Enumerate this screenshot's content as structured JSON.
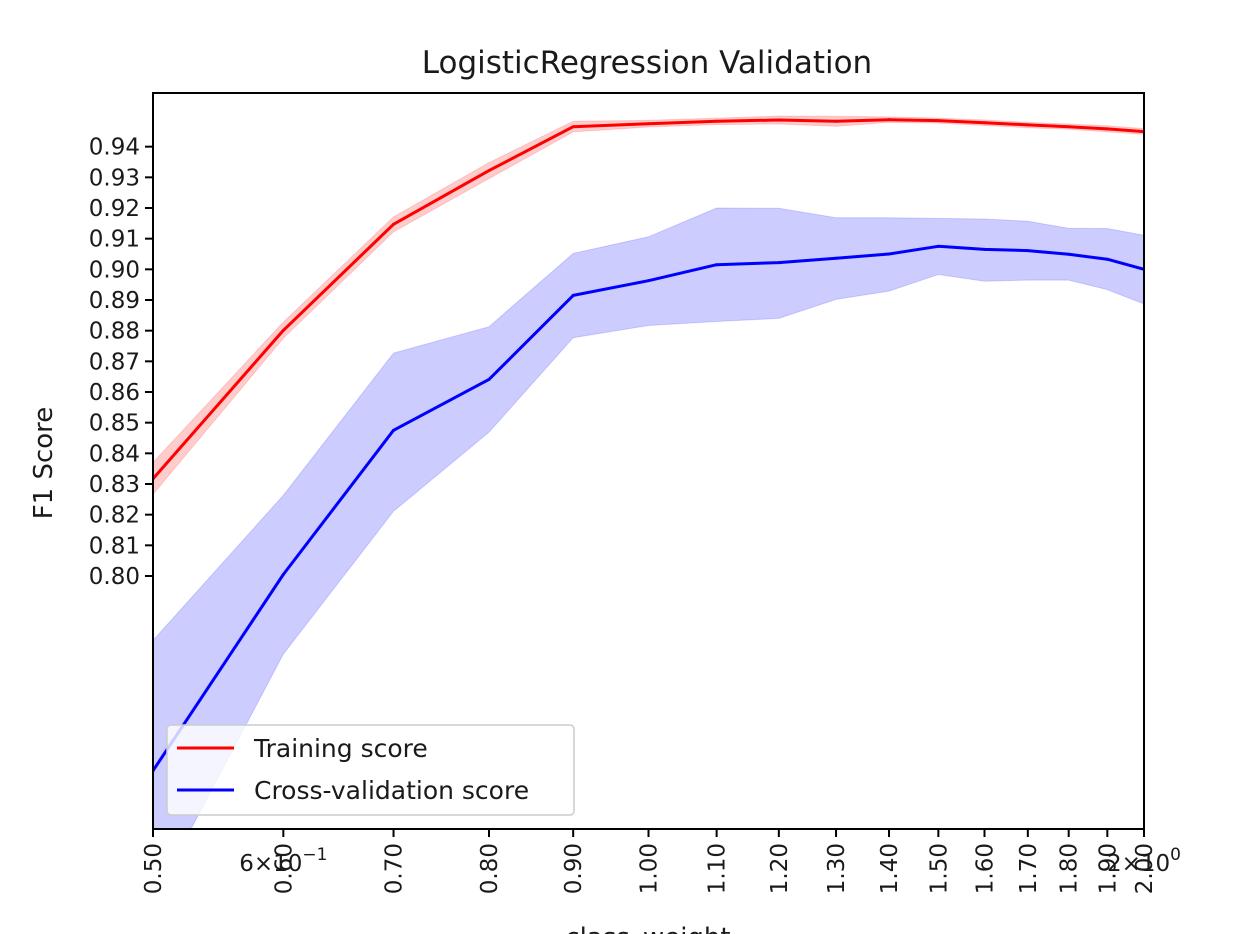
{
  "chart_data": {
    "type": "line",
    "title": "LogisticRegression Validation",
    "xlabel": "class_weight",
    "ylabel": "F1 Score",
    "x_scale": "log",
    "xlim": [
      0.5,
      2.0
    ],
    "ylim": [
      0.7175,
      0.9575
    ],
    "grid": false,
    "legend_position": "lower-left",
    "x": [
      0.5,
      0.6,
      0.7,
      0.8,
      0.9,
      1.0,
      1.1,
      1.2,
      1.3,
      1.4,
      1.5,
      1.6,
      1.7,
      1.8,
      1.9,
      2.0
    ],
    "x_tick_values": [
      0.5,
      0.6,
      0.7,
      0.8,
      0.9,
      1.0,
      1.1,
      1.2,
      1.3,
      1.4,
      1.5,
      1.6,
      1.7,
      1.8,
      1.9,
      2.0
    ],
    "x_tick_labels": [
      "0.50",
      "0.60",
      "0.70",
      "0.80",
      "0.90",
      "1.00",
      "1.10",
      "1.20",
      "1.30",
      "1.40",
      "1.50",
      "1.60",
      "1.70",
      "1.80",
      "1.90",
      "2.00"
    ],
    "x_minor_labels": [
      {
        "value": 0.6,
        "base": "6×10",
        "exp": "−1"
      },
      {
        "value": 2.0,
        "base": "2×10",
        "exp": "0"
      }
    ],
    "y_tick_values": [
      0.8,
      0.81,
      0.82,
      0.83,
      0.84,
      0.85,
      0.86,
      0.87,
      0.88,
      0.89,
      0.9,
      0.91,
      0.92,
      0.93,
      0.94
    ],
    "y_tick_labels": [
      "0.80",
      "0.81",
      "0.82",
      "0.83",
      "0.84",
      "0.85",
      "0.86",
      "0.87",
      "0.88",
      "0.89",
      "0.90",
      "0.91",
      "0.92",
      "0.93",
      "0.94"
    ],
    "series": [
      {
        "name": "Training score",
        "color": "#ff0000",
        "band_color": "#ff0000",
        "values": [
          0.8317,
          0.8801,
          0.9147,
          0.9322,
          0.9465,
          0.9475,
          0.9483,
          0.9487,
          0.9483,
          0.9488,
          0.9485,
          0.9478,
          0.9471,
          0.9465,
          0.9458,
          0.9449
        ],
        "upper": [
          0.837,
          0.8828,
          0.9171,
          0.9348,
          0.9483,
          0.9486,
          0.9493,
          0.95,
          0.9499,
          0.9497,
          0.9493,
          0.9487,
          0.9479,
          0.9474,
          0.9468,
          0.9459
        ],
        "lower": [
          0.8266,
          0.8775,
          0.9122,
          0.9296,
          0.9448,
          0.9464,
          0.9472,
          0.9474,
          0.9466,
          0.9479,
          0.9477,
          0.9469,
          0.9462,
          0.9457,
          0.9448,
          0.944
        ]
      },
      {
        "name": "Cross-validation score",
        "color": "#0000ff",
        "band_color": "#0000ff",
        "values": [
          0.7365,
          0.8005,
          0.8475,
          0.8641,
          0.8915,
          0.8963,
          0.9015,
          0.9022,
          0.9036,
          0.905,
          0.9075,
          0.9065,
          0.9061,
          0.9049,
          0.9033,
          0.9
        ],
        "upper": [
          0.779,
          0.8263,
          0.8727,
          0.8813,
          0.9052,
          0.9106,
          0.92,
          0.9199,
          0.9168,
          0.9168,
          0.9166,
          0.9164,
          0.9157,
          0.9134,
          0.9133,
          0.9111
        ],
        "lower": [
          0.694,
          0.7745,
          0.8211,
          0.8469,
          0.8777,
          0.8817,
          0.883,
          0.884,
          0.8902,
          0.8929,
          0.8983,
          0.8961,
          0.8965,
          0.8965,
          0.8934,
          0.8887
        ]
      }
    ]
  }
}
